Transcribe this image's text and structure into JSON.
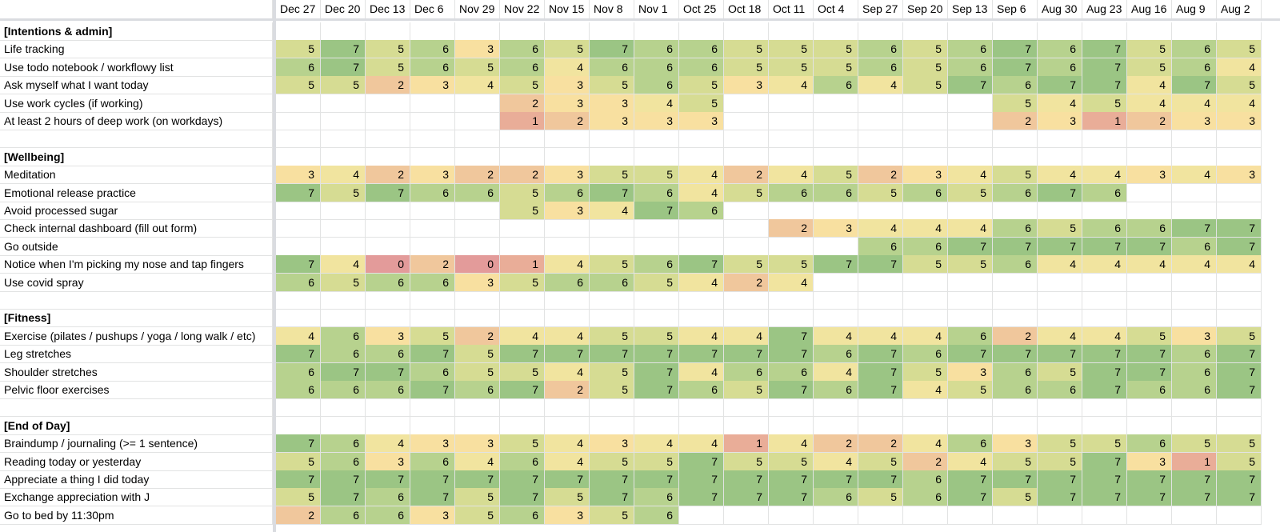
{
  "spreadsheet": {
    "dates": [
      "Dec 27",
      "Dec 20",
      "Dec 13",
      "Dec 6",
      "Nov 29",
      "Nov 22",
      "Nov 15",
      "Nov 8",
      "Nov 1",
      "Oct 25",
      "Oct 18",
      "Oct 11",
      "Oct 4",
      "Sep 27",
      "Sep 20",
      "Sep 13",
      "Sep 6",
      "Aug 30",
      "Aug 23",
      "Aug 16",
      "Aug 9",
      "Aug 2"
    ],
    "rows": [
      {
        "type": "section",
        "label": "[Intentions & admin]"
      },
      {
        "type": "data",
        "label": "Life tracking",
        "values": [
          5,
          7,
          5,
          6,
          3,
          6,
          5,
          7,
          6,
          6,
          5,
          5,
          5,
          6,
          5,
          6,
          7,
          6,
          7,
          5,
          6,
          5
        ]
      },
      {
        "type": "data",
        "label": "Use todo notebook / workflowy list",
        "values": [
          6,
          7,
          5,
          6,
          5,
          6,
          4,
          6,
          6,
          6,
          5,
          5,
          5,
          6,
          5,
          6,
          7,
          6,
          7,
          5,
          6,
          4
        ]
      },
      {
        "type": "data",
        "label": "Ask myself what I want today",
        "values": [
          5,
          5,
          2,
          3,
          4,
          5,
          3,
          5,
          6,
          5,
          3,
          4,
          6,
          4,
          5,
          7,
          6,
          7,
          7,
          4,
          7,
          5
        ]
      },
      {
        "type": "data",
        "label": "Use work cycles (if working)",
        "values": [
          null,
          null,
          null,
          null,
          null,
          2,
          3,
          3,
          4,
          5,
          null,
          null,
          null,
          null,
          null,
          null,
          5,
          4,
          5,
          4,
          4,
          4
        ]
      },
      {
        "type": "data",
        "label": "At least 2 hours of deep work (on workdays)",
        "values": [
          null,
          null,
          null,
          null,
          null,
          1,
          2,
          3,
          3,
          3,
          null,
          null,
          null,
          null,
          null,
          null,
          2,
          3,
          1,
          2,
          3,
          3
        ]
      },
      {
        "type": "blank"
      },
      {
        "type": "section",
        "label": "[Wellbeing]"
      },
      {
        "type": "data",
        "label": "Meditation",
        "values": [
          3,
          4,
          2,
          3,
          2,
          2,
          3,
          5,
          5,
          4,
          2,
          4,
          5,
          2,
          3,
          4,
          5,
          4,
          4,
          3,
          4,
          3
        ]
      },
      {
        "type": "data",
        "label": "Emotional release practice",
        "values": [
          7,
          5,
          7,
          6,
          6,
          5,
          6,
          7,
          6,
          4,
          5,
          6,
          6,
          5,
          6,
          5,
          6,
          7,
          6,
          null,
          null,
          null
        ]
      },
      {
        "type": "data",
        "label": "Avoid processed sugar",
        "values": [
          null,
          null,
          null,
          null,
          null,
          5,
          3,
          4,
          7,
          6,
          null,
          null,
          null,
          null,
          null,
          null,
          null,
          null,
          null,
          null,
          null,
          null
        ]
      },
      {
        "type": "data",
        "label": "Check internal dashboard (fill out form)",
        "values": [
          null,
          null,
          null,
          null,
          null,
          null,
          null,
          null,
          null,
          null,
          null,
          2,
          3,
          4,
          4,
          4,
          6,
          5,
          6,
          6,
          7,
          7
        ]
      },
      {
        "type": "data",
        "label": "Go outside",
        "values": [
          null,
          null,
          null,
          null,
          null,
          null,
          null,
          null,
          null,
          null,
          null,
          null,
          null,
          6,
          6,
          7,
          7,
          7,
          7,
          7,
          6,
          7
        ]
      },
      {
        "type": "data",
        "label": "Notice when I'm picking my nose and tap fingers",
        "values": [
          7,
          4,
          0,
          2,
          0,
          1,
          4,
          5,
          6,
          7,
          5,
          5,
          7,
          7,
          5,
          5,
          6,
          4,
          4,
          4,
          4,
          4
        ]
      },
      {
        "type": "data",
        "label": "Use covid spray",
        "values": [
          6,
          5,
          6,
          6,
          3,
          5,
          6,
          6,
          5,
          4,
          2,
          4,
          null,
          null,
          null,
          null,
          null,
          null,
          null,
          null,
          null,
          null
        ]
      },
      {
        "type": "blank"
      },
      {
        "type": "section",
        "label": "[Fitness]"
      },
      {
        "type": "data",
        "label": "Exercise (pilates / pushups / yoga / long walk / etc)",
        "values": [
          4,
          6,
          3,
          5,
          2,
          4,
          4,
          5,
          5,
          4,
          4,
          7,
          4,
          4,
          4,
          6,
          2,
          4,
          4,
          5,
          3,
          5
        ]
      },
      {
        "type": "data",
        "label": "Leg stretches",
        "values": [
          7,
          6,
          6,
          7,
          5,
          7,
          7,
          7,
          7,
          7,
          7,
          7,
          6,
          7,
          6,
          7,
          7,
          7,
          7,
          7,
          6,
          7
        ]
      },
      {
        "type": "data",
        "label": "Shoulder stretches",
        "values": [
          6,
          7,
          7,
          6,
          5,
          5,
          4,
          5,
          7,
          4,
          6,
          6,
          4,
          7,
          5,
          3,
          6,
          5,
          7,
          7,
          6,
          7
        ]
      },
      {
        "type": "data",
        "label": "Pelvic floor exercises",
        "values": [
          6,
          6,
          6,
          7,
          6,
          7,
          2,
          5,
          7,
          6,
          5,
          7,
          6,
          7,
          4,
          5,
          6,
          6,
          7,
          6,
          6,
          7
        ]
      },
      {
        "type": "blank"
      },
      {
        "type": "section",
        "label": "[End of Day]"
      },
      {
        "type": "data",
        "label": "Braindump / journaling (>= 1 sentence)",
        "values": [
          7,
          6,
          4,
          3,
          3,
          5,
          4,
          3,
          4,
          4,
          1,
          4,
          2,
          2,
          4,
          6,
          3,
          5,
          5,
          6,
          5,
          5
        ]
      },
      {
        "type": "data",
        "label": "Reading today or yesterday",
        "values": [
          5,
          6,
          3,
          6,
          4,
          6,
          4,
          5,
          5,
          7,
          5,
          5,
          4,
          5,
          2,
          4,
          5,
          5,
          7,
          3,
          1,
          5
        ]
      },
      {
        "type": "data",
        "label": "Appreciate a thing I did today",
        "values": [
          7,
          7,
          7,
          7,
          7,
          7,
          7,
          7,
          7,
          7,
          7,
          7,
          7,
          7,
          6,
          7,
          7,
          7,
          7,
          7,
          7,
          7
        ]
      },
      {
        "type": "data",
        "label": "Exchange appreciation with J",
        "values": [
          5,
          7,
          6,
          7,
          5,
          7,
          5,
          7,
          6,
          7,
          7,
          7,
          6,
          5,
          6,
          7,
          5,
          7,
          7,
          7,
          7,
          7
        ]
      },
      {
        "type": "data",
        "label": "Go to bed by 11:30pm",
        "values": [
          2,
          6,
          6,
          3,
          5,
          6,
          3,
          5,
          6,
          null,
          null,
          null,
          null,
          null,
          null,
          null,
          null,
          null,
          null,
          null,
          null,
          null
        ]
      }
    ],
    "palette": {
      "0": "#e39b9a",
      "1": "#e9ad98",
      "2": "#f0c79c",
      "3": "#f8e0a0",
      "4": "#f1e49f",
      "5": "#d6dc93",
      "6": "#b7d28e",
      "7": "#9bc584"
    },
    "gridline_color": "#e2e3e3",
    "frozen_divider_color": "#dadce0"
  }
}
